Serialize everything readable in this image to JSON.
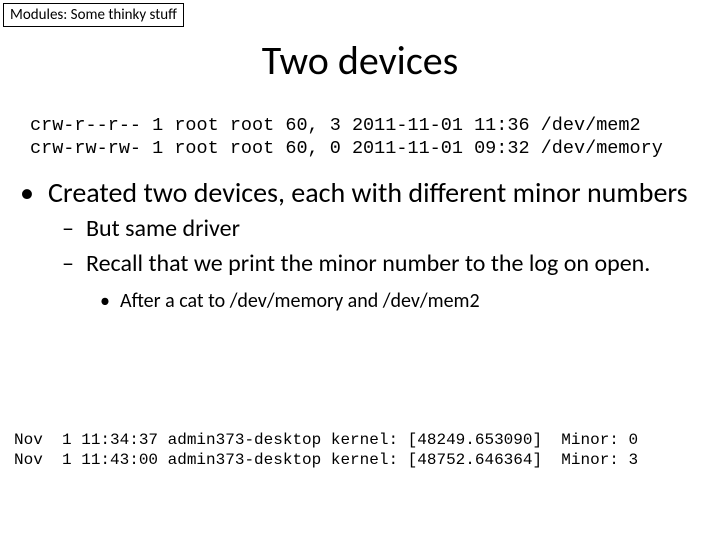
{
  "header": {
    "label": "Modules: Some thinky stuff"
  },
  "title": "Two devices",
  "ls": {
    "line1": "crw-r--r-- 1 root root 60, 3 2011-11-01 11:36 /dev/mem2",
    "line2": "crw-rw-rw- 1 root root 60, 0 2011-11-01 09:32 /dev/memory"
  },
  "bullets": {
    "lvl1": "Created two devices, each with different minor numbers",
    "lvl2a": "But same driver",
    "lvl2b": "Recall that we print the minor number to the log on open.",
    "lvl3": "After a cat to /dev/memory and /dev/mem2"
  },
  "log": {
    "line1": "Nov  1 11:34:37 admin373-desktop kernel: [48249.653090]  Minor: 0",
    "line2": "Nov  1 11:43:00 admin373-desktop kernel: [48752.646364]  Minor: 3"
  },
  "colors": {
    "bg": "#ffffff",
    "text": "#000000",
    "border": "#000000"
  },
  "fonts": {
    "body": "Calibri",
    "mono": "Courier New",
    "title_size_pt": 40,
    "lvl1_size_pt": 28,
    "lvl2_size_pt": 24,
    "lvl3_size_pt": 20,
    "mono_ls_size_pt": 18.5,
    "mono_log_size_pt": 16,
    "header_size_pt": 15
  }
}
